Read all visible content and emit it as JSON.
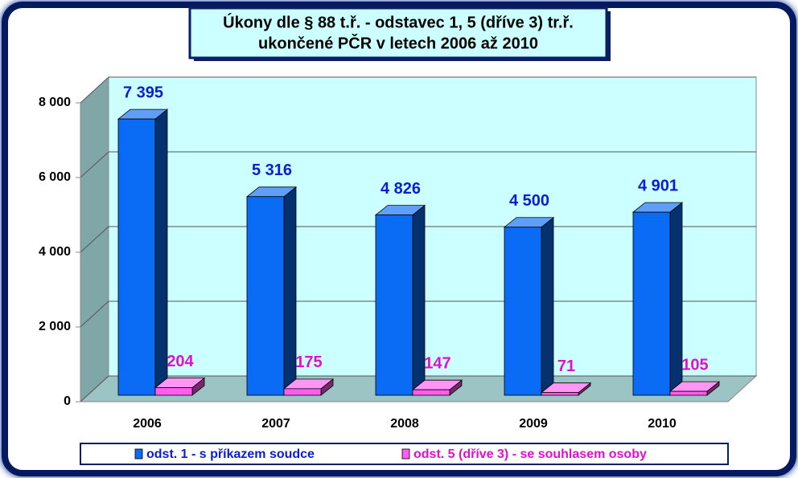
{
  "chart_data": {
    "type": "bar3d",
    "title": [
      "Úkony dle § 88 t.ř. - odstavec 1, 5 (dříve 3)  tr.ř.",
      "ukončené PČR v letech 2006 až 2010"
    ],
    "categories": [
      "2006",
      "2007",
      "2008",
      "2009",
      "2010"
    ],
    "series": [
      {
        "name": "odst. 1 - s příkazem soudce",
        "color": "#0a6cf5",
        "values": [
          7395,
          5316,
          4826,
          4500,
          4901
        ],
        "value_labels": [
          "7 395",
          "5 316",
          "4 826",
          "4 500",
          "4 901"
        ]
      },
      {
        "name": "odst. 5 (dříve 3) - se souhlasem osoby",
        "color": "#ff5cf0",
        "values": [
          204,
          175,
          147,
          71,
          105
        ]
      }
    ],
    "ylim": [
      0,
      8000
    ],
    "yticks": [
      0,
      {
        "value": 2000,
        "label": "2 000"
      },
      {
        "value": 4000,
        "label": "4 000"
      },
      {
        "value": 6000,
        "label": "6 000"
      },
      {
        "value": 8000,
        "label": "8 000"
      }
    ],
    "grid": true,
    "legend": "bottom"
  }
}
